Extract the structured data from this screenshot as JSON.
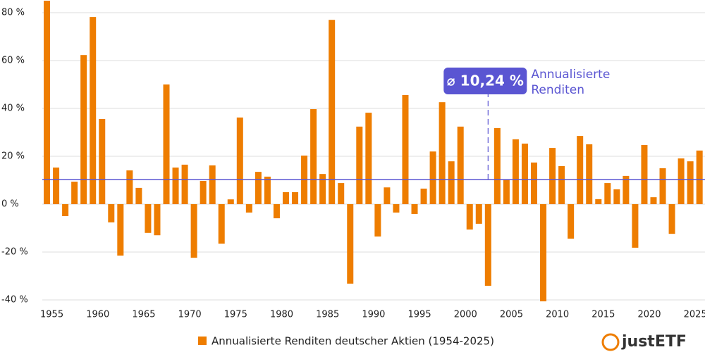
{
  "chart_data": {
    "type": "bar",
    "x": [
      1954,
      1955,
      1956,
      1957,
      1958,
      1959,
      1960,
      1961,
      1962,
      1963,
      1964,
      1965,
      1966,
      1967,
      1968,
      1969,
      1970,
      1971,
      1972,
      1973,
      1974,
      1975,
      1976,
      1977,
      1978,
      1979,
      1980,
      1981,
      1982,
      1983,
      1984,
      1985,
      1986,
      1987,
      1988,
      1989,
      1990,
      1991,
      1992,
      1993,
      1994,
      1995,
      1996,
      1997,
      1998,
      1999,
      2000,
      2001,
      2002,
      2003,
      2004,
      2005,
      2006,
      2007,
      2008,
      2009,
      2010,
      2011,
      2012,
      2013,
      2014,
      2015,
      2016,
      2017,
      2018,
      2019,
      2020,
      2021,
      2022,
      2023,
      2024,
      2025
    ],
    "series": [
      {
        "name": "Annualisierte Renditen deutscher Aktien (1954-2025)",
        "color": "#ee7d00",
        "values": [
          85,
          15.3,
          -5,
          9.4,
          62.3,
          78.2,
          35.6,
          -7.6,
          -21.5,
          14.1,
          6.8,
          -12,
          -13,
          50,
          15.3,
          16.5,
          -22.4,
          9.7,
          16.2,
          -16.5,
          2,
          36.2,
          -3.5,
          13.5,
          11.5,
          -5.9,
          5,
          5,
          20.3,
          39.7,
          12.6,
          77,
          8.8,
          -33.2,
          32.4,
          38.2,
          -13.5,
          7,
          -3.5,
          45.6,
          -4.1,
          6.5,
          22,
          42.6,
          17.9,
          32.4,
          -10.6,
          -8.2,
          -34.1,
          31.8,
          10.3,
          27.1,
          25.3,
          17.4,
          -40.6,
          23.5,
          15.9,
          -14.4,
          28.5,
          25,
          2.1,
          8.8,
          6.2,
          11.8,
          -18.2,
          24.7,
          2.9,
          15,
          -12.4,
          19.1,
          17.9,
          22.4
        ]
      }
    ],
    "xlim": [
      1953.5,
      2025.6
    ],
    "xticks": [
      1955,
      1960,
      1965,
      1970,
      1975,
      1980,
      1985,
      1990,
      1995,
      2000,
      2005,
      2010,
      2015,
      2020,
      2025
    ],
    "ylim": [
      -41,
      85
    ],
    "yticks": [
      {
        "value": -40,
        "label": "-40 %"
      },
      {
        "value": -20,
        "label": "-20 %"
      },
      {
        "value": 0,
        "label": "0 %"
      },
      {
        "value": 20,
        "label": "20 %"
      },
      {
        "value": 40,
        "label": "40 %"
      },
      {
        "value": 60,
        "label": "60 %"
      },
      {
        "value": 80,
        "label": "80 %"
      }
    ],
    "grid": true,
    "average": {
      "value": 10.24,
      "label": "⌀ 10,24 %",
      "x": 2002,
      "color": "#5a55d2",
      "annotation": [
        "Annualisierte",
        "Renditen"
      ]
    },
    "brand": "justETF"
  }
}
